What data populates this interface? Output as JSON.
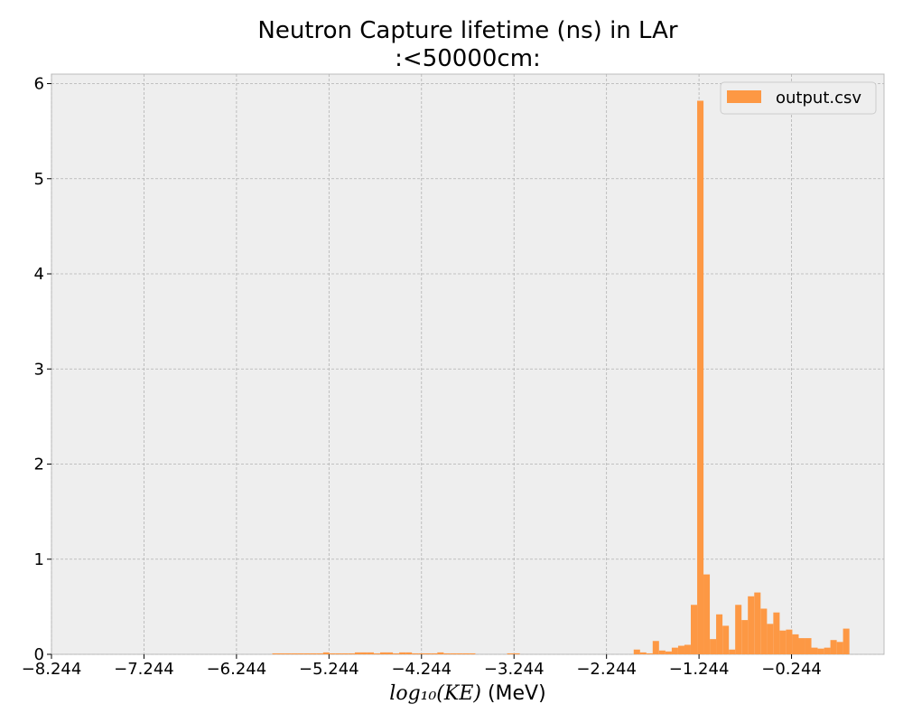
{
  "chart_data": {
    "type": "bar",
    "title": "Neutron Capture lifetime (ns) in LAr",
    "subtitle": ":<50000cm:",
    "xlabel_math": "log₁₀(KE)",
    "xlabel_unit": " (MeV)",
    "ylabel": "",
    "xlim": [
      -8.244,
      0.756
    ],
    "ylim": [
      0,
      6.1
    ],
    "xticks": [
      -8.244,
      -7.244,
      -6.244,
      -5.244,
      -4.244,
      -3.244,
      -2.244,
      -1.244,
      -0.244
    ],
    "xtick_labels": [
      "−8.244",
      "−7.244",
      "−6.244",
      "−5.244",
      "−4.244",
      "−3.244",
      "−2.244",
      "−1.244",
      "−0.244"
    ],
    "yticks": [
      0,
      1,
      2,
      3,
      4,
      5,
      6
    ],
    "ytick_labels": [
      "0",
      "1",
      "2",
      "3",
      "4",
      "5",
      "6"
    ],
    "grid": true,
    "legend_position": "top-right",
    "series": [
      {
        "name": "output.csv",
        "color": "#fd9844",
        "bin_width": 0.0686,
        "bins": [
          [
            -5.857,
            0.01
          ],
          [
            -5.789,
            0.01
          ],
          [
            -5.72,
            0.01
          ],
          [
            -5.651,
            0.01
          ],
          [
            -5.583,
            0.01
          ],
          [
            -5.514,
            0.01
          ],
          [
            -5.446,
            0.01
          ],
          [
            -5.377,
            0.01
          ],
          [
            -5.308,
            0.02
          ],
          [
            -5.24,
            0.01
          ],
          [
            -5.171,
            0.01
          ],
          [
            -5.103,
            0.01
          ],
          [
            -5.034,
            0.01
          ],
          [
            -4.965,
            0.02
          ],
          [
            -4.897,
            0.02
          ],
          [
            -4.828,
            0.02
          ],
          [
            -4.759,
            0.01
          ],
          [
            -4.691,
            0.02
          ],
          [
            -4.622,
            0.02
          ],
          [
            -4.554,
            0.01
          ],
          [
            -4.485,
            0.02
          ],
          [
            -4.416,
            0.02
          ],
          [
            -4.348,
            0.01
          ],
          [
            -4.279,
            0.01
          ],
          [
            -4.211,
            0.01
          ],
          [
            -4.142,
            0.01
          ],
          [
            -4.073,
            0.02
          ],
          [
            -4.005,
            0.01
          ],
          [
            -3.936,
            0.01
          ],
          [
            -3.868,
            0.01
          ],
          [
            -3.799,
            0.01
          ],
          [
            -3.73,
            0.01
          ],
          [
            -3.319,
            0.01
          ],
          [
            -3.25,
            0.01
          ],
          [
            -1.95,
            0.05
          ],
          [
            -1.882,
            0.02
          ],
          [
            -1.813,
            0.01
          ],
          [
            -1.745,
            0.14
          ],
          [
            -1.676,
            0.04
          ],
          [
            -1.607,
            0.03
          ],
          [
            -1.539,
            0.07
          ],
          [
            -1.47,
            0.09
          ],
          [
            -1.402,
            0.1
          ],
          [
            -1.333,
            0.52
          ],
          [
            -1.264,
            5.82
          ],
          [
            -1.196,
            0.84
          ],
          [
            -1.127,
            0.16
          ],
          [
            -1.059,
            0.42
          ],
          [
            -0.99,
            0.3
          ],
          [
            -0.921,
            0.05
          ],
          [
            -0.853,
            0.52
          ],
          [
            -0.784,
            0.36
          ],
          [
            -0.716,
            0.61
          ],
          [
            -0.647,
            0.65
          ],
          [
            -0.578,
            0.48
          ],
          [
            -0.51,
            0.32
          ],
          [
            -0.441,
            0.44
          ],
          [
            -0.373,
            0.25
          ],
          [
            -0.304,
            0.26
          ],
          [
            -0.235,
            0.21
          ],
          [
            -0.167,
            0.17
          ],
          [
            -0.098,
            0.17
          ],
          [
            -0.03,
            0.07
          ],
          [
            0.039,
            0.06
          ],
          [
            0.108,
            0.07
          ],
          [
            0.176,
            0.15
          ],
          [
            0.245,
            0.13
          ],
          [
            0.313,
            0.27
          ]
        ]
      }
    ]
  }
}
